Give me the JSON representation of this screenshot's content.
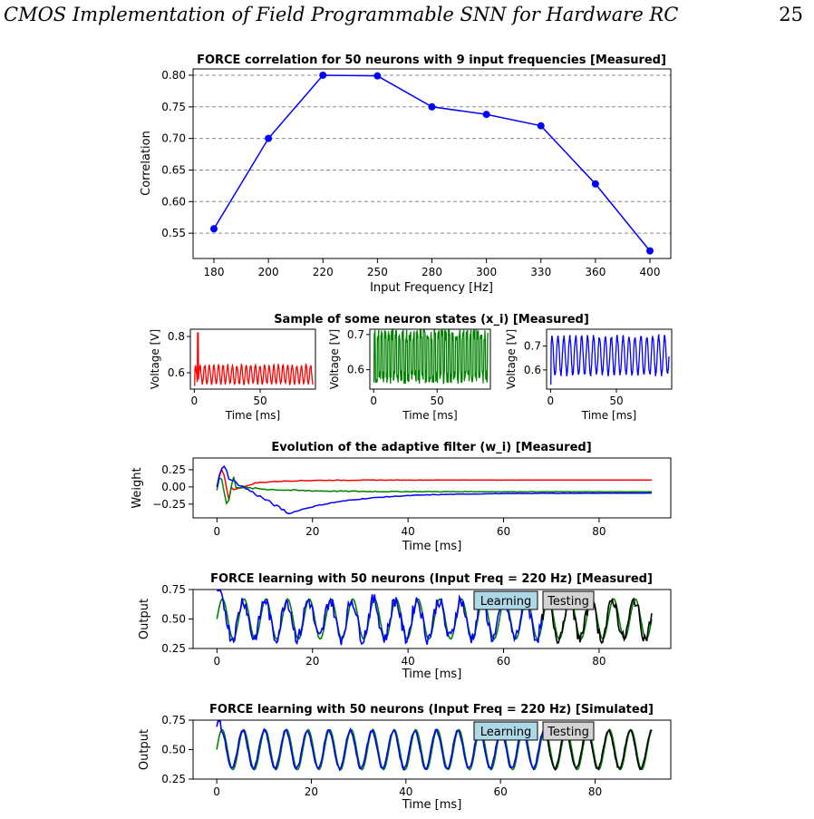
{
  "header": {
    "running_title": "CMOS Implementation of Field Programmable SNN for Hardware RC",
    "page_number": "25"
  },
  "colors": {
    "red": "#ff0000",
    "green": "#008000",
    "blue": "#0000ff",
    "black": "#000000",
    "learning_box": "#add8e6",
    "testing_box": "#d3d3d3"
  },
  "chart_data": [
    {
      "type": "line",
      "title": "FORCE correlation for 50 neurons with 9 input frequencies [Measured]",
      "xlabel": "Input Frequency [Hz]",
      "ylabel": "Correlation",
      "categories": [
        "180",
        "200",
        "220",
        "250",
        "280",
        "300",
        "330",
        "360",
        "400"
      ],
      "series": [
        {
          "values": [
            0.557,
            0.7,
            0.8,
            0.799,
            0.75,
            0.738,
            0.72,
            0.628,
            0.522
          ]
        }
      ],
      "yticks": [
        "0.55",
        "0.60",
        "0.65",
        "0.70",
        "0.75",
        "0.80"
      ],
      "ylim": [
        0.51,
        0.81
      ],
      "grid": "horizontal dashed"
    },
    {
      "type": "line",
      "title": "Sample of some neuron states (x_i) [Measured]",
      "panels": [
        {
          "ylabel": "Voltage [V]",
          "xlabel": "Time [ms]",
          "series_color": "red",
          "yticks": [
            "0.6",
            "0.8"
          ],
          "ylim": [
            0.51,
            0.84
          ],
          "xlim": [
            -3,
            92
          ],
          "xticks": [
            "0",
            "50"
          ],
          "baseline": 0.54,
          "amplitude": 0.1,
          "period_ms": 3.5,
          "spike_peak": 0.82
        },
        {
          "ylabel": "Voltage [V]",
          "xlabel": "Time [ms]",
          "series_color": "green",
          "yticks": [
            "0.6",
            "0.7"
          ],
          "ylim": [
            0.545,
            0.715
          ],
          "xlim": [
            -3,
            92
          ],
          "xticks": [
            "0",
            "50"
          ],
          "baseline": 0.56,
          "amplitude": 0.14,
          "period_ms": 2.8
        },
        {
          "ylabel": "Voltage [V]",
          "xlabel": "Time [ms]",
          "series_color": "blue",
          "yticks": [
            "0.6",
            "0.7"
          ],
          "ylim": [
            0.52,
            0.77
          ],
          "xlim": [
            -3,
            92
          ],
          "xticks": [
            "0",
            "50"
          ],
          "baseline": 0.58,
          "amplitude": 0.16,
          "period_ms": 4.5
        }
      ]
    },
    {
      "type": "line",
      "title": "Evolution of the adaptive filter (w_i) [Measured]",
      "xlabel": "Time [ms]",
      "ylabel": "Weight",
      "xlim": [
        -5,
        95
      ],
      "ylim": [
        -0.45,
        0.42
      ],
      "xticks": [
        "0",
        "20",
        "40",
        "60",
        "80"
      ],
      "yticks": [
        "0.25",
        "0.00",
        "−0.25"
      ],
      "series": [
        {
          "color": "red",
          "final": 0.1
        },
        {
          "color": "green",
          "final": -0.07
        },
        {
          "color": "blue",
          "final": -0.09
        }
      ]
    },
    {
      "type": "line",
      "title": "FORCE learning with 50 neurons (Input Freq = 220 Hz) [Measured]",
      "xlabel": "Time [ms]",
      "ylabel": "Output",
      "xlim": [
        -5,
        95
      ],
      "ylim": [
        0.25,
        0.75
      ],
      "xticks": [
        "0",
        "20",
        "40",
        "60",
        "80"
      ],
      "yticks": [
        "0.75",
        "0.50",
        "0.25"
      ],
      "period_ms": 4.55,
      "center": 0.5,
      "amplitude": 0.17,
      "learning_end_ms": 68,
      "end_ms": 91,
      "labels": [
        "Learning",
        "Testing"
      ]
    },
    {
      "type": "line",
      "title": "FORCE learning with 50 neurons (Input Freq = 220 Hz) [Simulated]",
      "xlabel": "Time [ms]",
      "ylabel": "Output",
      "xlim": [
        -5,
        96
      ],
      "ylim": [
        0.25,
        0.75
      ],
      "xticks": [
        "0",
        "20",
        "40",
        "60",
        "80"
      ],
      "yticks": [
        "0.75",
        "0.50",
        "0.25"
      ],
      "period_ms": 4.55,
      "center": 0.5,
      "amplitude": 0.17,
      "learning_end_ms": 70,
      "end_ms": 92,
      "labels": [
        "Learning",
        "Testing"
      ]
    }
  ]
}
